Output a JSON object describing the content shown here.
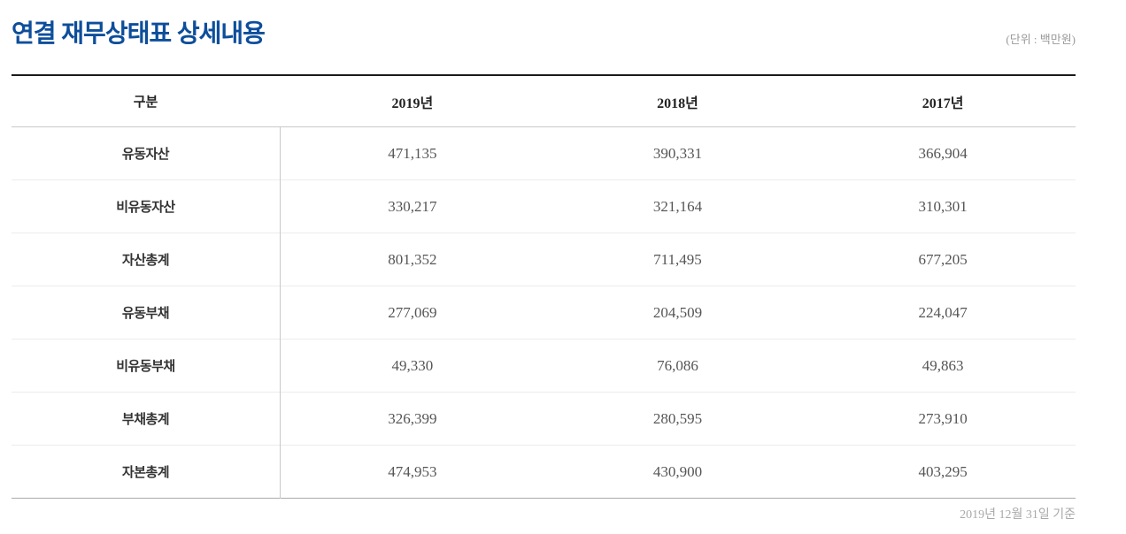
{
  "page": {
    "title": "연결 재무상태표 상세내용",
    "unit_label": "(단위 : 백만원)",
    "footnote": "2019년 12월 31일 기준"
  },
  "colors": {
    "title_blue": "#0d4e9b",
    "top_border": "#1b1b1b",
    "divider_gray": "#c9c9c9",
    "row_separator": "#ececec",
    "value_text": "#555555",
    "muted_text": "#9a9a9a"
  },
  "table": {
    "columns": [
      "구분",
      "2019년",
      "2018년",
      "2017년"
    ],
    "rows": [
      {
        "label": "유동자산",
        "values": [
          "471,135",
          "390,331",
          "366,904"
        ]
      },
      {
        "label": "비유동자산",
        "values": [
          "330,217",
          "321,164",
          "310,301"
        ]
      },
      {
        "label": "자산총계",
        "values": [
          "801,352",
          "711,495",
          "677,205"
        ]
      },
      {
        "label": "유동부채",
        "values": [
          "277,069",
          "204,509",
          "224,047"
        ]
      },
      {
        "label": "비유동부채",
        "values": [
          "49,330",
          "76,086",
          "49,863"
        ]
      },
      {
        "label": "부채총계",
        "values": [
          "326,399",
          "280,595",
          "273,910"
        ]
      },
      {
        "label": "자본총계",
        "values": [
          "474,953",
          "430,900",
          "403,295"
        ]
      }
    ]
  }
}
